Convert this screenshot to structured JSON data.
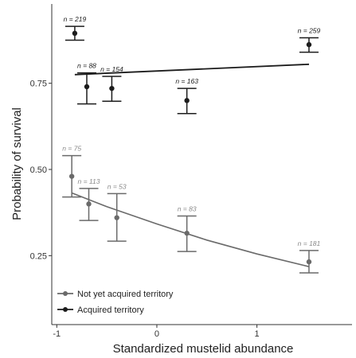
{
  "chart_data": {
    "type": "scatter",
    "xlabel": "Standardized mustelid abundance",
    "ylabel": "Probability of survival",
    "xlim": [
      -1.05,
      1.95
    ],
    "ylim": [
      0.05,
      0.98
    ],
    "x_ticks": [
      {
        "value": -1,
        "label": "-1"
      },
      {
        "value": 0,
        "label": "0"
      },
      {
        "value": 1,
        "label": "1"
      }
    ],
    "y_ticks": [
      {
        "value": 0.25,
        "label": "0.25"
      },
      {
        "value": 0.5,
        "label": "0.50"
      },
      {
        "value": 0.75,
        "label": "0.75"
      }
    ],
    "grid": false,
    "legend_position": "bottom-left",
    "series": [
      {
        "key": "acquired",
        "name": "Acquired territory",
        "color": "#1c1c1c",
        "label_color": "#1c1c1c",
        "points": [
          {
            "x": -0.82,
            "y": 0.895,
            "lo": 0.875,
            "hi": 0.915,
            "n": "n = 219"
          },
          {
            "x": -0.7,
            "y": 0.74,
            "lo": 0.69,
            "hi": 0.78,
            "n": "n = 88"
          },
          {
            "x": -0.45,
            "y": 0.735,
            "lo": 0.698,
            "hi": 0.77,
            "n": "n = 154"
          },
          {
            "x": 0.3,
            "y": 0.7,
            "lo": 0.662,
            "hi": 0.735,
            "n": "n = 163"
          },
          {
            "x": 1.52,
            "y": 0.862,
            "lo": 0.84,
            "hi": 0.882,
            "n": "n = 259"
          }
        ],
        "fit": [
          {
            "x": -0.82,
            "y": 0.775
          },
          {
            "x": 1.52,
            "y": 0.805
          }
        ]
      },
      {
        "key": "not_acquired",
        "name": "Not yet acquired territory",
        "color": "#6a6a6a",
        "label_color": "#8a8a8a",
        "points": [
          {
            "x": -0.85,
            "y": 0.48,
            "lo": 0.42,
            "hi": 0.54,
            "n": "n = 75"
          },
          {
            "x": -0.68,
            "y": 0.4,
            "lo": 0.352,
            "hi": 0.445,
            "n": "n = 113"
          },
          {
            "x": -0.4,
            "y": 0.36,
            "lo": 0.292,
            "hi": 0.43,
            "n": "n = 53"
          },
          {
            "x": 0.3,
            "y": 0.315,
            "lo": 0.262,
            "hi": 0.365,
            "n": "n = 83"
          },
          {
            "x": 1.52,
            "y": 0.232,
            "lo": 0.2,
            "hi": 0.265,
            "n": "n = 181"
          }
        ],
        "fit": [
          {
            "x": -0.85,
            "y": 0.432
          },
          {
            "x": -0.5,
            "y": 0.392
          },
          {
            "x": 0.0,
            "y": 0.342
          },
          {
            "x": 0.5,
            "y": 0.295
          },
          {
            "x": 1.0,
            "y": 0.255
          },
          {
            "x": 1.52,
            "y": 0.218
          }
        ]
      }
    ],
    "legend": [
      {
        "label": "Not yet acquired territory",
        "color": "#6a6a6a"
      },
      {
        "label": "Acquired territory",
        "color": "#1c1c1c"
      }
    ]
  }
}
